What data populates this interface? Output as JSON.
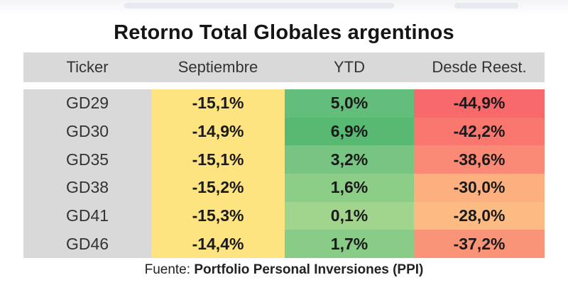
{
  "title": "Retorno Total Globales argentinos",
  "table": {
    "headers": [
      "Ticker",
      "Septiembre",
      "YTD",
      "Desde Reest."
    ],
    "rows": [
      {
        "ticker": "GD29",
        "septiembre": "-15,1%",
        "ytd": "5,0%",
        "desde": "-44,9%",
        "ytd_color": "#63be7b",
        "desde_color": "#f8696b"
      },
      {
        "ticker": "GD30",
        "septiembre": "-14,9%",
        "ytd": "6,9%",
        "desde": "-42,2%",
        "ytd_color": "#57b972",
        "desde_color": "#f9776f"
      },
      {
        "ticker": "GD35",
        "septiembre": "-15,1%",
        "ytd": "3,2%",
        "desde": "-38,6%",
        "ytd_color": "#78c482",
        "desde_color": "#fa8a76"
      },
      {
        "ticker": "GD38",
        "septiembre": "-15,2%",
        "ytd": "1,6%",
        "desde": "-30,0%",
        "ytd_color": "#8ccd88",
        "desde_color": "#fcb07f"
      },
      {
        "ticker": "GD41",
        "septiembre": "-15,3%",
        "ytd": "0,1%",
        "desde": "-28,0%",
        "ytd_color": "#a1d48d",
        "desde_color": "#fdbb84"
      },
      {
        "ticker": "GD46",
        "septiembre": "-14,4%",
        "ytd": "1,7%",
        "desde": "-37,2%",
        "ytd_color": "#89cc87",
        "desde_color": "#fa9478"
      }
    ],
    "septiembre_color": "#fde480"
  },
  "source": {
    "prefix": "Fuente: ",
    "name": "Portfolio Personal Inversiones (PPI)"
  }
}
